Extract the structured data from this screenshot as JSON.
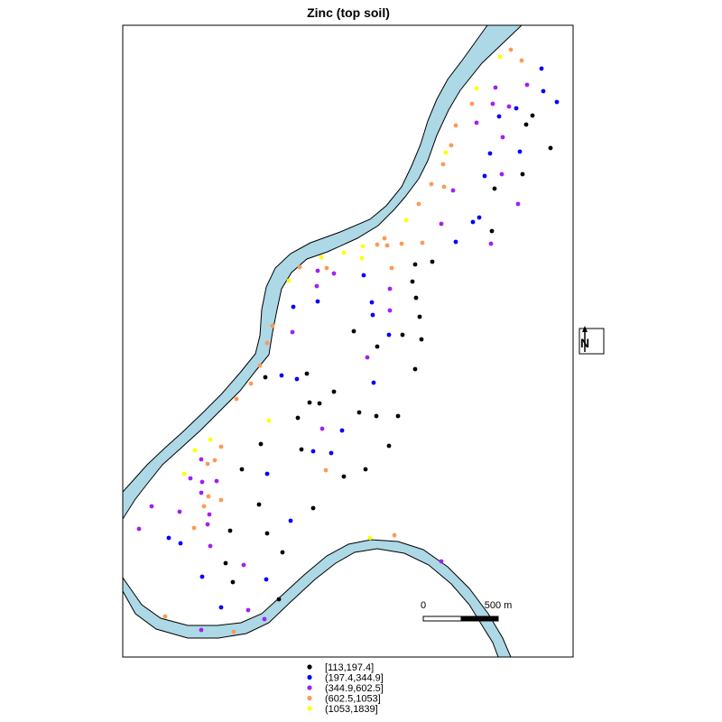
{
  "chart_data": {
    "type": "scatter",
    "title": "Zinc (top soil)",
    "legend_position": "bottom",
    "classes": [
      {
        "label": "[113,197.4]",
        "color": "#000000"
      },
      {
        "label": "(197.4,344.9]",
        "color": "#0000ff"
      },
      {
        "label": "(344.9,602.5]",
        "color": "#a020f0"
      },
      {
        "label": "(602.5,1053]",
        "color": "#ff9955"
      },
      {
        "label": "(1053,1839]",
        "color": "#ffff00"
      }
    ],
    "river_color": "#add8e6",
    "points": [
      [
        566,
        55,
        3
      ],
      [
        554,
        63,
        4
      ],
      [
        578,
        67,
        3
      ],
      [
        600,
        76,
        1
      ],
      [
        584,
        94,
        2
      ],
      [
        528,
        98,
        4
      ],
      [
        549,
        97,
        2
      ],
      [
        602,
        101,
        1
      ],
      [
        617,
        113,
        1
      ],
      [
        523,
        115,
        3
      ],
      [
        546,
        115,
        2
      ],
      [
        564,
        118,
        2
      ],
      [
        553,
        129,
        1
      ],
      [
        572,
        120,
        1
      ],
      [
        590,
        128,
        0
      ],
      [
        583,
        138,
        0
      ],
      [
        528,
        136,
        2
      ],
      [
        505,
        139,
        3
      ],
      [
        557,
        152,
        2
      ],
      [
        500,
        161,
        3
      ],
      [
        610,
        164,
        0
      ],
      [
        494,
        169,
        4
      ],
      [
        543,
        170,
        1
      ],
      [
        576,
        168,
        1
      ],
      [
        491,
        182,
        3
      ],
      [
        537,
        195,
        1
      ],
      [
        579,
        193,
        0
      ],
      [
        556,
        193,
        2
      ],
      [
        478,
        204,
        3
      ],
      [
        492,
        207,
        3
      ],
      [
        502,
        211,
        2
      ],
      [
        548,
        209,
        0
      ],
      [
        574,
        226,
        2
      ],
      [
        464,
        226,
        3
      ],
      [
        450,
        244,
        4
      ],
      [
        489,
        248,
        2
      ],
      [
        524,
        246,
        1
      ],
      [
        531,
        241,
        1
      ],
      [
        545,
        256,
        0
      ],
      [
        544,
        270,
        2
      ],
      [
        426,
        264,
        3
      ],
      [
        505,
        268,
        1
      ],
      [
        468,
        269,
        3
      ],
      [
        402,
        273,
        4
      ],
      [
        418,
        271,
        3
      ],
      [
        429,
        272,
        3
      ],
      [
        445,
        270,
        3
      ],
      [
        381,
        280,
        4
      ],
      [
        401,
        286,
        4
      ],
      [
        356,
        285,
        4
      ],
      [
        479,
        290,
        0
      ],
      [
        460,
        293,
        0
      ],
      [
        434,
        297,
        3
      ],
      [
        332,
        296,
        3
      ],
      [
        362,
        297,
        3
      ],
      [
        352,
        300,
        2
      ],
      [
        370,
        303,
        2
      ],
      [
        403,
        305,
        1
      ],
      [
        320,
        311,
        4
      ],
      [
        457,
        312,
        0
      ],
      [
        351,
        317,
        2
      ],
      [
        432,
        320,
        2
      ],
      [
        461,
        330,
        0
      ],
      [
        412,
        335,
        1
      ],
      [
        352,
        334,
        1
      ],
      [
        325,
        340,
        1
      ],
      [
        432,
        344,
        2
      ],
      [
        413,
        349,
        1
      ],
      [
        465,
        351,
        0
      ],
      [
        302,
        361,
        3
      ],
      [
        324,
        368,
        2
      ],
      [
        392,
        367,
        0
      ],
      [
        431,
        371,
        1
      ],
      [
        446,
        371,
        0
      ],
      [
        418,
        384,
        0
      ],
      [
        467,
        376,
        0
      ],
      [
        296,
        380,
        3
      ],
      [
        407,
        396,
        2
      ],
      [
        288,
        405,
        3
      ],
      [
        460,
        409,
        0
      ],
      [
        340,
        414,
        0
      ],
      [
        294,
        418,
        0
      ],
      [
        312,
        416,
        1
      ],
      [
        329,
        420,
        1
      ],
      [
        278,
        425,
        3
      ],
      [
        414,
        424,
        1
      ],
      [
        370,
        434,
        0
      ],
      [
        262,
        442,
        3
      ],
      [
        343,
        446,
        0
      ],
      [
        354,
        447,
        0
      ],
      [
        330,
        463,
        0
      ],
      [
        417,
        461,
        0
      ],
      [
        441,
        461,
        0
      ],
      [
        298,
        466,
        4
      ],
      [
        398,
        457,
        0
      ],
      [
        379,
        477,
        1
      ],
      [
        233,
        487,
        4
      ],
      [
        357,
        475,
        2
      ],
      [
        245,
        495,
        3
      ],
      [
        289,
        492,
        0
      ],
      [
        216,
        499,
        4
      ],
      [
        431,
        494,
        0
      ],
      [
        334,
        498,
        0
      ],
      [
        347,
        500,
        1
      ],
      [
        367,
        502,
        1
      ],
      [
        223,
        509,
        2
      ],
      [
        238,
        510,
        3
      ],
      [
        230,
        514,
        3
      ],
      [
        204,
        525,
        4
      ],
      [
        211,
        530,
        2
      ],
      [
        268,
        520,
        0
      ],
      [
        361,
        521,
        3
      ],
      [
        296,
        525,
        1
      ],
      [
        405,
        520,
        0
      ],
      [
        224,
        534,
        2
      ],
      [
        240,
        533,
        2
      ],
      [
        223,
        546,
        2
      ],
      [
        381,
        528,
        0
      ],
      [
        231,
        550,
        3
      ],
      [
        287,
        559,
        0
      ],
      [
        168,
        561,
        2
      ],
      [
        245,
        554,
        3
      ],
      [
        226,
        561,
        3
      ],
      [
        232,
        570,
        2
      ],
      [
        347,
        563,
        0
      ],
      [
        199,
        567,
        2
      ],
      [
        230,
        581,
        2
      ],
      [
        322,
        577,
        1
      ],
      [
        154,
        586,
        2
      ],
      [
        215,
        585,
        3
      ],
      [
        255,
        588,
        0
      ],
      [
        296,
        591,
        0
      ],
      [
        187,
        596,
        1
      ],
      [
        200,
        602,
        1
      ],
      [
        410,
        596,
        4
      ],
      [
        233,
        605,
        2
      ],
      [
        437,
        593,
        3
      ],
      [
        313,
        612,
        0
      ],
      [
        250,
        624,
        0
      ],
      [
        489,
        622,
        2
      ],
      [
        270,
        626,
        2
      ],
      [
        224,
        639,
        1
      ],
      [
        295,
        642,
        1
      ],
      [
        258,
        645,
        0
      ],
      [
        309,
        664,
        0
      ],
      [
        245,
        673,
        1
      ],
      [
        275,
        676,
        2
      ],
      [
        183,
        683,
        3
      ],
      [
        293,
        686,
        2
      ],
      [
        223,
        698,
        2
      ],
      [
        259,
        700,
        3
      ]
    ]
  },
  "scale_bar": {
    "start_label": "0",
    "end_label": "500 m"
  },
  "north_arrow": {
    "label": "N"
  }
}
